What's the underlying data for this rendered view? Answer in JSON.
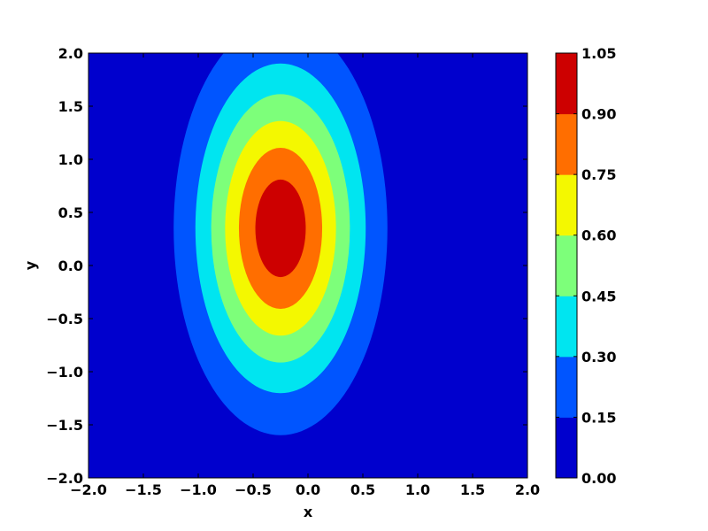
{
  "chart_data": {
    "type": "contourf",
    "title": "",
    "xlabel": "x",
    "ylabel": "y",
    "xlim": [
      -2.0,
      2.0
    ],
    "ylim": [
      -2.0,
      2.0
    ],
    "x_ticks": [
      "−2.0",
      "−1.5",
      "−1.0",
      "−0.5",
      "0.0",
      "0.5",
      "1.0",
      "1.5",
      "2.0"
    ],
    "y_ticks": [
      "−2.0",
      "−1.5",
      "−1.0",
      "−0.5",
      "0.0",
      "0.5",
      "1.0",
      "1.5",
      "2.0"
    ],
    "function": {
      "form": "gaussian",
      "amplitude": 1.0,
      "center_x": -0.25,
      "center_y": 0.35,
      "sigma_x": 0.5,
      "sigma_y": 1.0
    },
    "levels": [
      0.0,
      0.15,
      0.3,
      0.45,
      0.6,
      0.75,
      0.9,
      1.05
    ],
    "level_labels": [
      "0.00",
      "0.15",
      "0.30",
      "0.45",
      "0.60",
      "0.75",
      "0.90",
      "1.05"
    ],
    "level_colors": [
      "#0000cd",
      "#0055ff",
      "#00e5f0",
      "#7dff7a",
      "#f4f800",
      "#ff6e00",
      "#cd0000"
    ],
    "colormap": "jet",
    "grid": false,
    "colorbar": "right"
  }
}
